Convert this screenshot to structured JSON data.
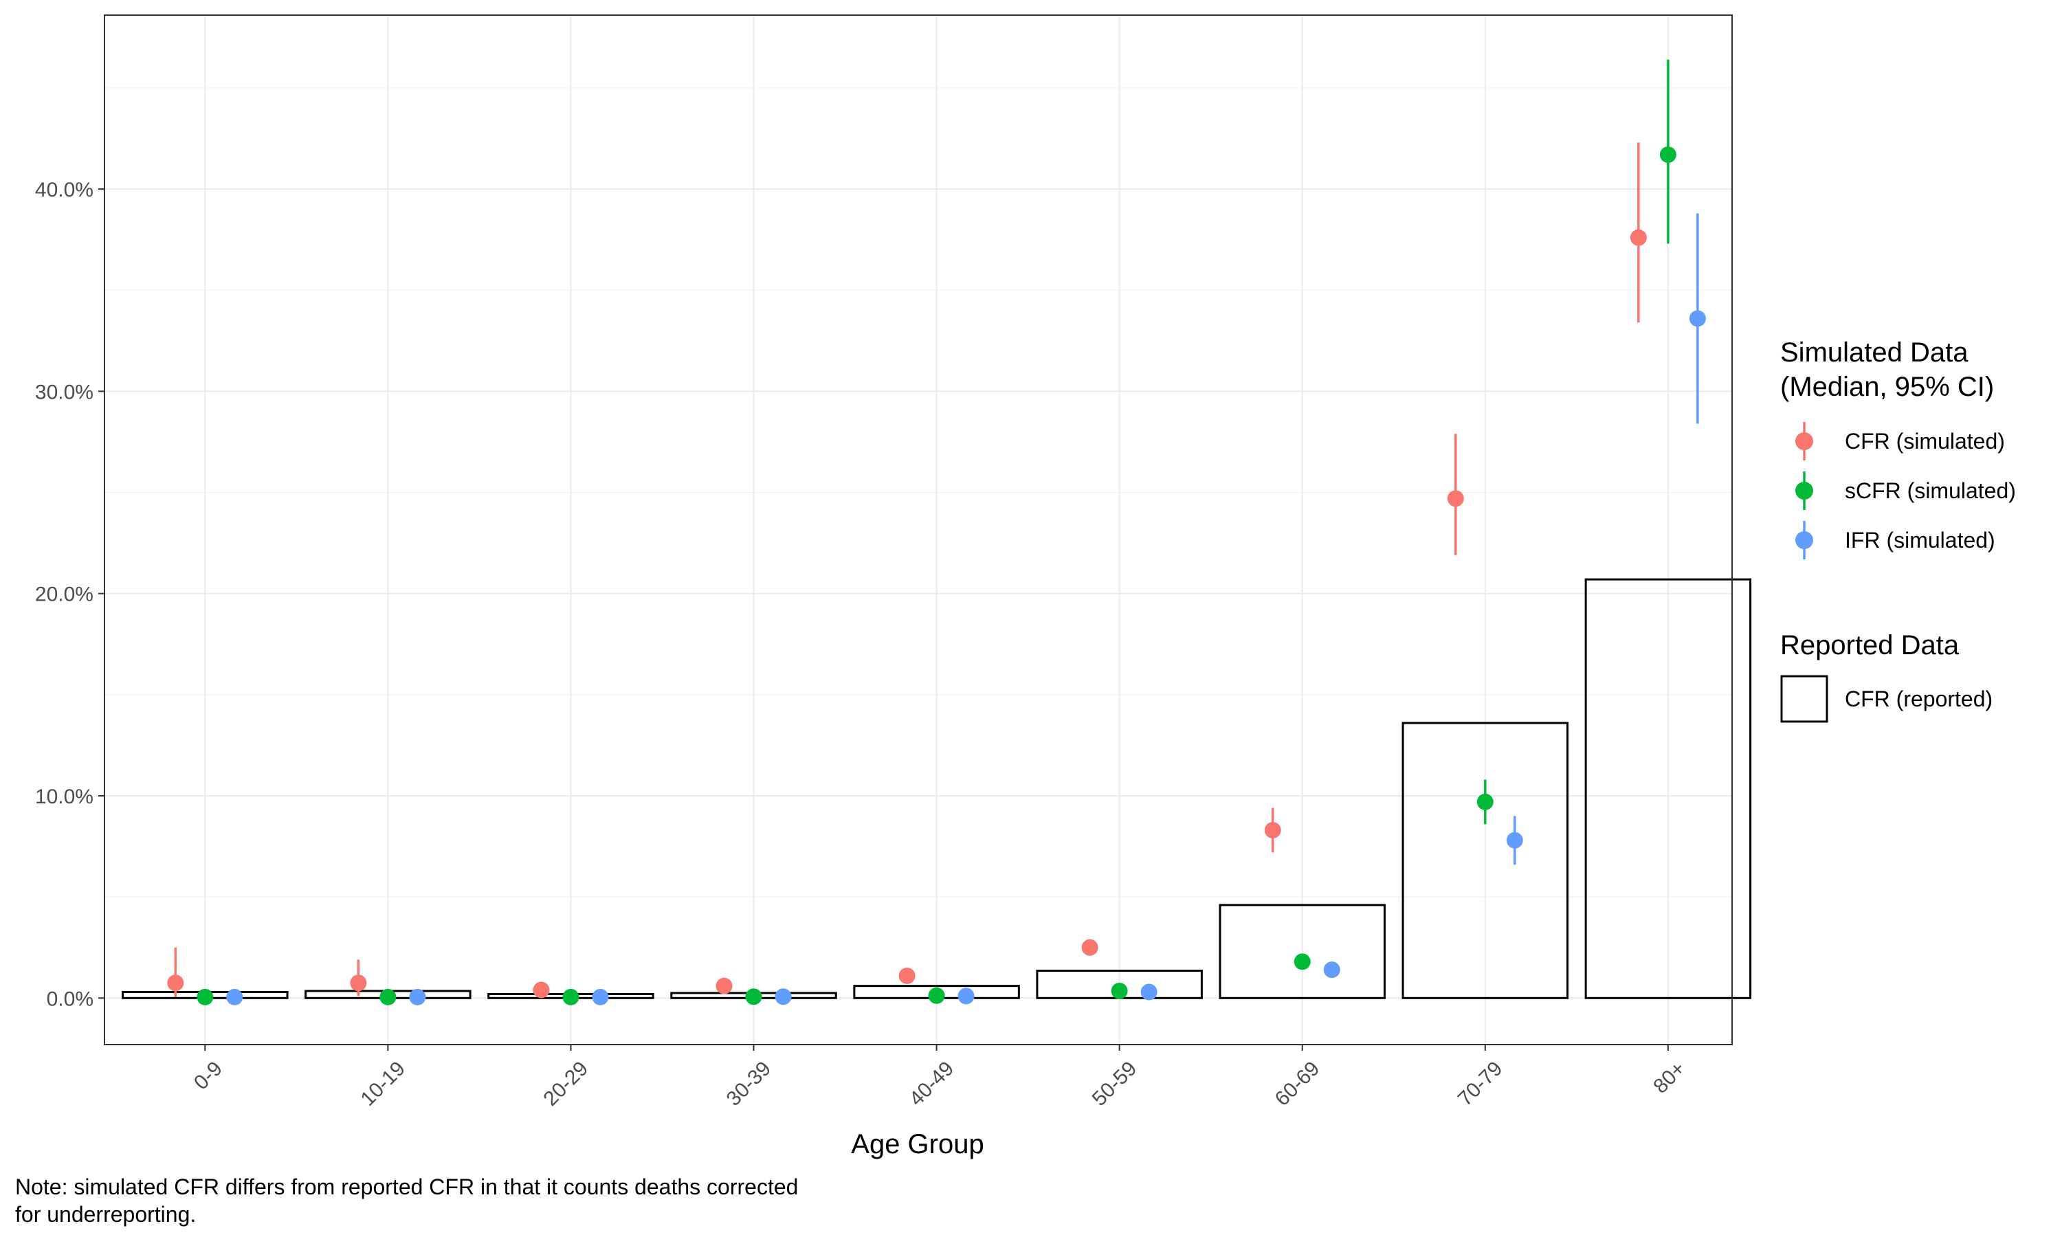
{
  "chart_data": {
    "type": "bar+pointrange",
    "xlabel": "Age Group",
    "ylabel": "",
    "categories": [
      "0-9",
      "10-19",
      "20-29",
      "30-39",
      "40-49",
      "50-59",
      "60-69",
      "70-79",
      "80+"
    ],
    "ylim": [
      0,
      48.6
    ],
    "y_ticks": [
      0,
      10,
      20,
      30,
      40
    ],
    "y_tick_labels": [
      "0.0%",
      "10.0%",
      "20.0%",
      "30.0%",
      "40.0%"
    ],
    "grid": true,
    "legend_placement": "right",
    "bars": {
      "name": "CFR (reported)",
      "values": [
        0.3,
        0.35,
        0.2,
        0.25,
        0.6,
        1.35,
        4.6,
        13.6,
        20.7
      ]
    },
    "series": [
      {
        "name": "CFR (simulated)",
        "color": "#F8766D",
        "median": [
          0.75,
          0.75,
          0.4,
          0.6,
          1.1,
          2.5,
          8.3,
          24.7,
          37.6
        ],
        "lower": [
          0.05,
          0.1,
          0.1,
          0.2,
          0.8,
          2.3,
          7.2,
          21.9,
          33.4
        ],
        "upper": [
          2.5,
          1.9,
          0.6,
          0.8,
          1.4,
          2.7,
          9.4,
          27.9,
          42.3
        ]
      },
      {
        "name": "sCFR (simulated)",
        "color": "#00BA38",
        "median": [
          0.05,
          0.05,
          0.05,
          0.07,
          0.12,
          0.35,
          1.8,
          9.7,
          41.7
        ],
        "lower": [
          0.0,
          0.0,
          0.0,
          0.02,
          0.05,
          0.25,
          1.6,
          8.6,
          37.3
        ],
        "upper": [
          0.1,
          0.1,
          0.1,
          0.12,
          0.2,
          0.45,
          2.0,
          10.8,
          46.4
        ]
      },
      {
        "name": "IFR (simulated)",
        "color": "#619CFF",
        "median": [
          0.05,
          0.05,
          0.05,
          0.07,
          0.1,
          0.3,
          1.4,
          7.8,
          33.6
        ],
        "lower": [
          0.0,
          0.0,
          0.0,
          0.02,
          0.05,
          0.2,
          1.2,
          6.6,
          28.4
        ],
        "upper": [
          0.1,
          0.1,
          0.1,
          0.12,
          0.15,
          0.4,
          1.6,
          9.0,
          38.8
        ]
      }
    ],
    "legend": {
      "simulated_title_line1": "Simulated Data",
      "simulated_title_line2": "(Median, 95% CI)",
      "reported_title": "Reported Data"
    },
    "note": {
      "line1": "Note: simulated CFR differs from reported CFR in that it counts deaths corrected",
      "line2": "for underreporting."
    }
  }
}
